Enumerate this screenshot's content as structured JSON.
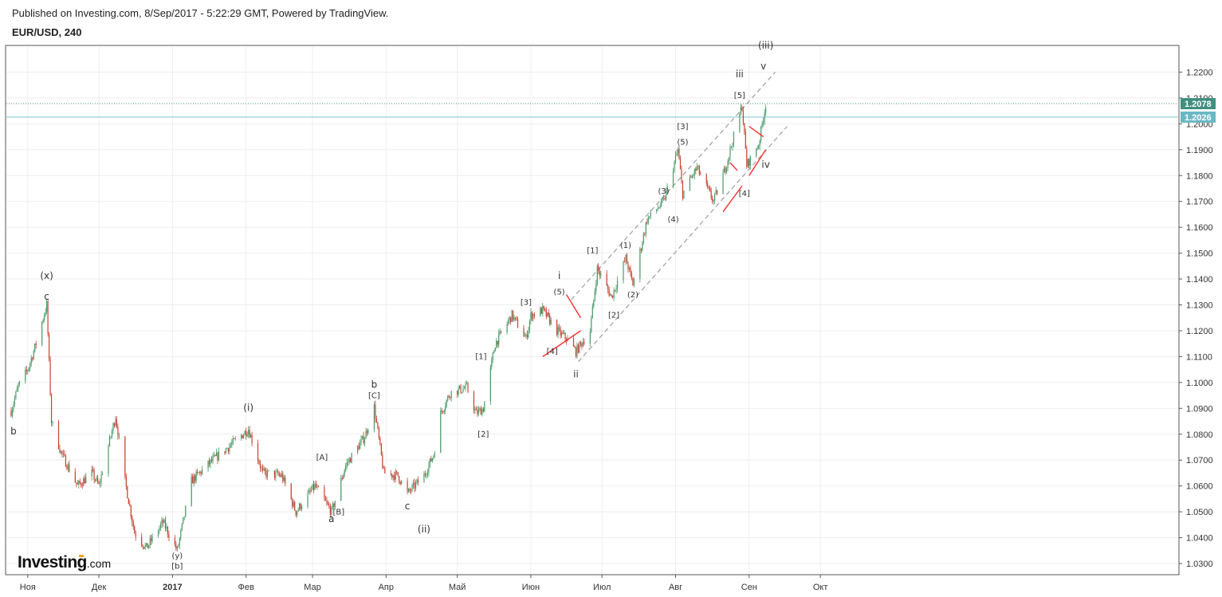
{
  "header": {
    "published": "Published on Investing.com, 8/Sep/2017 - 5:22:29 GMT, Powered by TradingView.",
    "symbol": "EUR/USD, 240"
  },
  "logo": {
    "main": "Investing",
    "suffix": ".com"
  },
  "colors": {
    "up": "#4a9a6a",
    "down": "#c8412f",
    "trendline": "#ff2020",
    "channel": "#9e9e9e",
    "price_line": "#7ec8d0",
    "last_badge": "#3e8f7f",
    "current_badge": "#69b8c4",
    "grid": "#eeeeee"
  },
  "chart_data": {
    "type": "candlestick",
    "symbol": "EUR/USD",
    "timeframe": "240",
    "x_ticks": [
      "Ноя",
      "Дек",
      "2017",
      "Фев",
      "Мар",
      "Апр",
      "Май",
      "Июн",
      "Июл",
      "Авг",
      "Сен",
      "Окт"
    ],
    "y_ticks": [
      "1.2200",
      "1.2100",
      "1.2000",
      "1.1900",
      "1.1800",
      "1.1700",
      "1.1600",
      "1.1500",
      "1.1400",
      "1.1300",
      "1.1200",
      "1.1100",
      "1.1000",
      "1.0900",
      "1.0800",
      "1.0700",
      "1.0600",
      "1.0500",
      "1.0400",
      "1.0300"
    ],
    "ylim": [
      1.026,
      1.23
    ],
    "price_labels": {
      "last": "1.2078",
      "current": "1.2026"
    },
    "path": [
      [
        "2016-10-25",
        1.089
      ],
      [
        "2016-10-28",
        1.0985
      ],
      [
        "2016-11-01",
        1.105
      ],
      [
        "2016-11-04",
        1.1135
      ],
      [
        "2016-11-09",
        1.13
      ],
      [
        "2016-11-11",
        1.085
      ],
      [
        "2016-11-15",
        1.073
      ],
      [
        "2016-11-22",
        1.06
      ],
      [
        "2016-11-28",
        1.065
      ],
      [
        "2016-12-01",
        1.06
      ],
      [
        "2016-12-08",
        1.087
      ],
      [
        "2016-12-12",
        1.062
      ],
      [
        "2016-12-16",
        1.042
      ],
      [
        "2016-12-21",
        1.036
      ],
      [
        "2016-12-28",
        1.046
      ],
      [
        "2017-01-03",
        1.035
      ],
      [
        "2017-01-09",
        1.062
      ],
      [
        "2017-01-18",
        1.07
      ],
      [
        "2017-01-27",
        1.077
      ],
      [
        "2017-02-02",
        1.082
      ],
      [
        "2017-02-08",
        1.065
      ],
      [
        "2017-02-16",
        1.064
      ],
      [
        "2017-02-22",
        1.05
      ],
      [
        "2017-03-02",
        1.06
      ],
      [
        "2017-03-09",
        1.05
      ],
      [
        "2017-03-15",
        1.068
      ],
      [
        "2017-03-23",
        1.079
      ],
      [
        "2017-03-27",
        1.0905
      ],
      [
        "2017-03-31",
        1.065
      ],
      [
        "2017-04-06",
        1.064
      ],
      [
        "2017-04-10",
        1.057
      ],
      [
        "2017-04-17",
        1.064
      ],
      [
        "2017-04-21",
        1.072
      ],
      [
        "2017-04-24",
        1.088
      ],
      [
        "2017-04-28",
        1.096
      ],
      [
        "2017-05-05",
        1.098
      ],
      [
        "2017-05-09",
        1.088
      ],
      [
        "2017-05-12",
        1.09
      ],
      [
        "2017-05-17",
        1.115
      ],
      [
        "2017-05-24",
        1.126
      ],
      [
        "2017-05-30",
        1.117
      ],
      [
        "2017-06-01",
        1.126
      ],
      [
        "2017-06-06",
        1.128
      ],
      [
        "2017-06-12",
        1.12
      ],
      [
        "2017-06-16",
        1.117
      ],
      [
        "2017-06-20",
        1.112
      ],
      [
        "2017-06-26",
        1.12
      ],
      [
        "2017-06-29",
        1.144
      ],
      [
        "2017-07-05",
        1.133
      ],
      [
        "2017-07-11",
        1.148
      ],
      [
        "2017-07-14",
        1.138
      ],
      [
        "2017-07-20",
        1.163
      ],
      [
        "2017-07-27",
        1.17
      ],
      [
        "2017-08-02",
        1.19
      ],
      [
        "2017-08-04",
        1.173
      ],
      [
        "2017-08-10",
        1.183
      ],
      [
        "2017-08-17",
        1.17
      ],
      [
        "2017-08-22",
        1.183
      ],
      [
        "2017-08-29",
        1.207
      ],
      [
        "2017-08-31",
        1.184
      ],
      [
        "2017-09-05",
        1.192
      ],
      [
        "2017-09-08",
        1.2078
      ]
    ],
    "annotations": [
      {
        "text": "b",
        "x": "2016-10-26",
        "y": 1.08
      },
      {
        "text": "(x)",
        "x": "2016-11-09",
        "y": 1.14
      },
      {
        "text": "c",
        "x": "2016-11-09",
        "y": 1.132
      },
      {
        "text": "(y)",
        "x": "2017-01-03",
        "y": 1.032
      },
      {
        "text": "[b]",
        "x": "2017-01-03",
        "y": 1.028
      },
      {
        "text": "(i)",
        "x": "2017-02-02",
        "y": 1.089
      },
      {
        "text": "[A]",
        "x": "2017-03-05",
        "y": 1.07
      },
      {
        "text": "[B]",
        "x": "2017-03-12",
        "y": 1.049
      },
      {
        "text": "a",
        "x": "2017-03-09",
        "y": 1.046
      },
      {
        "text": "b",
        "x": "2017-03-27",
        "y": 1.098
      },
      {
        "text": "[C]",
        "x": "2017-03-27",
        "y": 1.094
      },
      {
        "text": "c",
        "x": "2017-04-10",
        "y": 1.051
      },
      {
        "text": "(ii)",
        "x": "2017-04-17",
        "y": 1.042
      },
      {
        "text": "[1]",
        "x": "2017-05-11",
        "y": 1.109
      },
      {
        "text": "[2]",
        "x": "2017-05-12",
        "y": 1.079
      },
      {
        "text": "[3]",
        "x": "2017-05-30",
        "y": 1.13
      },
      {
        "text": "i",
        "x": "2017-06-13",
        "y": 1.14
      },
      {
        "text": "(5)",
        "x": "2017-06-13",
        "y": 1.134
      },
      {
        "text": "[4]",
        "x": "2017-06-10",
        "y": 1.111
      },
      {
        "text": "ii",
        "x": "2017-06-20",
        "y": 1.102
      },
      {
        "text": "[1]",
        "x": "2017-06-27",
        "y": 1.15
      },
      {
        "text": "[2]",
        "x": "2017-07-06",
        "y": 1.125
      },
      {
        "text": "(1)",
        "x": "2017-07-11",
        "y": 1.152
      },
      {
        "text": "(2)",
        "x": "2017-07-14",
        "y": 1.133
      },
      {
        "text": "(3)",
        "x": "2017-07-27",
        "y": 1.173
      },
      {
        "text": "(4)",
        "x": "2017-07-31",
        "y": 1.162
      },
      {
        "text": "(5)",
        "x": "2017-08-04",
        "y": 1.192
      },
      {
        "text": "[3]",
        "x": "2017-08-04",
        "y": 1.198
      },
      {
        "text": "[4]",
        "x": "2017-08-30",
        "y": 1.172
      },
      {
        "text": "[5]",
        "x": "2017-08-28",
        "y": 1.21
      },
      {
        "text": "iii",
        "x": "2017-08-28",
        "y": 1.218
      },
      {
        "text": "(iii)",
        "x": "2017-09-08",
        "y": 1.229
      },
      {
        "text": "v",
        "x": "2017-09-07",
        "y": 1.221
      },
      {
        "text": "iv",
        "x": "2017-09-08",
        "y": 1.183
      }
    ],
    "channel_lines": [
      {
        "from": [
          "2017-06-18",
          1.132
        ],
        "to": [
          "2017-09-12",
          1.22
        ]
      },
      {
        "from": [
          "2017-06-21",
          1.108
        ],
        "to": [
          "2017-09-17",
          1.199
        ]
      }
    ],
    "trend_lines": [
      {
        "from": [
          "2017-06-06",
          1.11
        ],
        "to": [
          "2017-06-22",
          1.12
        ]
      },
      {
        "from": [
          "2017-06-16",
          1.134
        ],
        "to": [
          "2017-06-22",
          1.125
        ]
      },
      {
        "from": [
          "2017-08-21",
          1.166
        ],
        "to": [
          "2017-08-29",
          1.176
        ]
      },
      {
        "from": [
          "2017-08-24",
          1.185
        ],
        "to": [
          "2017-08-27",
          1.182
        ]
      },
      {
        "from": [
          "2017-09-01",
          1.18
        ],
        "to": [
          "2017-09-08",
          1.19
        ]
      },
      {
        "from": [
          "2017-09-01",
          1.199
        ],
        "to": [
          "2017-09-07",
          1.195
        ]
      }
    ]
  }
}
